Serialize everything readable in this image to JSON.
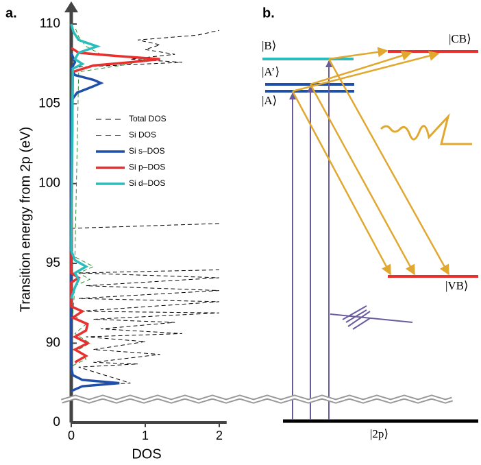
{
  "chart_data": {
    "type": "line",
    "panel_label": "a.",
    "x_label": "DOS",
    "y_label": "Transition energy from 2p (eV)",
    "xlim": [
      0,
      2.1
    ],
    "xticks": [
      0,
      1,
      2
    ],
    "ylim": [
      0,
      110
    ],
    "yticks": [
      0,
      90,
      95,
      100,
      105,
      110
    ],
    "axis_break": true,
    "series": [
      {
        "name": "Total DOS",
        "color": "#000000",
        "style": "dashed",
        "x": [
          87.4,
          87.5,
          88.5,
          88.7,
          88.8,
          89.3,
          89.6,
          90.1,
          90.4,
          90.6,
          90.9,
          91.3,
          91.5,
          91.9,
          92.0,
          92.6,
          92.8,
          93.3,
          93.6,
          94.1,
          94.4,
          94.6,
          null,
          97.2,
          97.5,
          null,
          107.3,
          107.6,
          107.8,
          108.1,
          108.4,
          108.7,
          109.0,
          109.3,
          109.6
        ],
        "values": [
          0.3,
          0.8,
          0.1,
          0.9,
          0.3,
          1.2,
          0.3,
          1.0,
          0.2,
          1.5,
          0.4,
          1.4,
          0.3,
          2.0,
          0.1,
          2.0,
          0.1,
          2.0,
          0.2,
          2.0,
          0.1,
          2.0,
          null,
          0.0,
          2.0,
          null,
          0.1,
          1.5,
          0.8,
          1.4,
          1.0,
          1.2,
          0.9,
          1.7,
          2.0
        ]
      },
      {
        "name": "Si DOS",
        "color": "#2e8b2e",
        "style": "dashed",
        "x": [
          88.6,
          89.0,
          89.6,
          90.0,
          90.6,
          91.2,
          91.8,
          93.6,
          94.0,
          94.4,
          94.8,
          95.4,
          107.0,
          107.5,
          107.8,
          108.1,
          108.6,
          109.2,
          109.8
        ],
        "values": [
          0.02,
          0.2,
          0.1,
          0.25,
          0.05,
          0.2,
          0.02,
          0.05,
          0.25,
          0.1,
          0.3,
          0.05,
          0.1,
          0.8,
          1.0,
          0.4,
          0.2,
          0.1,
          0.05
        ]
      },
      {
        "name": "Si s–DOS",
        "color": "#1f4fa8",
        "style": "solid",
        "x": [
          87.0,
          87.3,
          87.5,
          87.7,
          88.0,
          88.5,
          105.2,
          105.7,
          106.1,
          106.3,
          106.5,
          106.8,
          107.2,
          107.6,
          108.2
        ],
        "values": [
          0.0,
          0.15,
          0.65,
          0.15,
          0.02,
          0.0,
          0.0,
          0.08,
          0.3,
          0.4,
          0.3,
          0.05,
          0.0,
          0.05,
          0.0
        ]
      },
      {
        "name": "Si p–DOS",
        "color": "#e8302e",
        "style": "solid",
        "x": [
          88.8,
          89.2,
          89.6,
          90.0,
          90.4,
          90.8,
          91.2,
          91.6,
          92.0,
          92.3,
          93.8,
          94.1,
          94.4,
          107.0,
          107.4,
          107.6,
          107.8,
          108.0,
          108.2,
          108.5
        ],
        "values": [
          0.05,
          0.2,
          0.05,
          0.22,
          0.05,
          0.2,
          0.22,
          0.02,
          0.15,
          0.0,
          0.0,
          0.1,
          0.0,
          0.02,
          0.3,
          0.8,
          1.2,
          0.6,
          0.1,
          0.0
        ]
      },
      {
        "name": "Si d–DOS",
        "color": "#2bbcbc",
        "style": "solid",
        "x": [
          92.8,
          93.5,
          94.0,
          94.4,
          94.8,
          95.2,
          95.8,
          107.2,
          107.5,
          107.8,
          108.2,
          108.6,
          109.0,
          109.5,
          110.0
        ],
        "values": [
          0.0,
          0.05,
          0.1,
          0.05,
          0.2,
          0.05,
          0.0,
          0.02,
          0.15,
          0.05,
          0.1,
          0.35,
          0.1,
          0.03,
          0.0
        ]
      }
    ]
  },
  "panel_b": {
    "panel_label": "b.",
    "labels": {
      "B": "|B⟩",
      "A_prime": "|A’⟩",
      "A": "|A⟩",
      "CB": "|CB⟩",
      "VB": "|VB⟩",
      "core": "|2p⟩"
    }
  }
}
